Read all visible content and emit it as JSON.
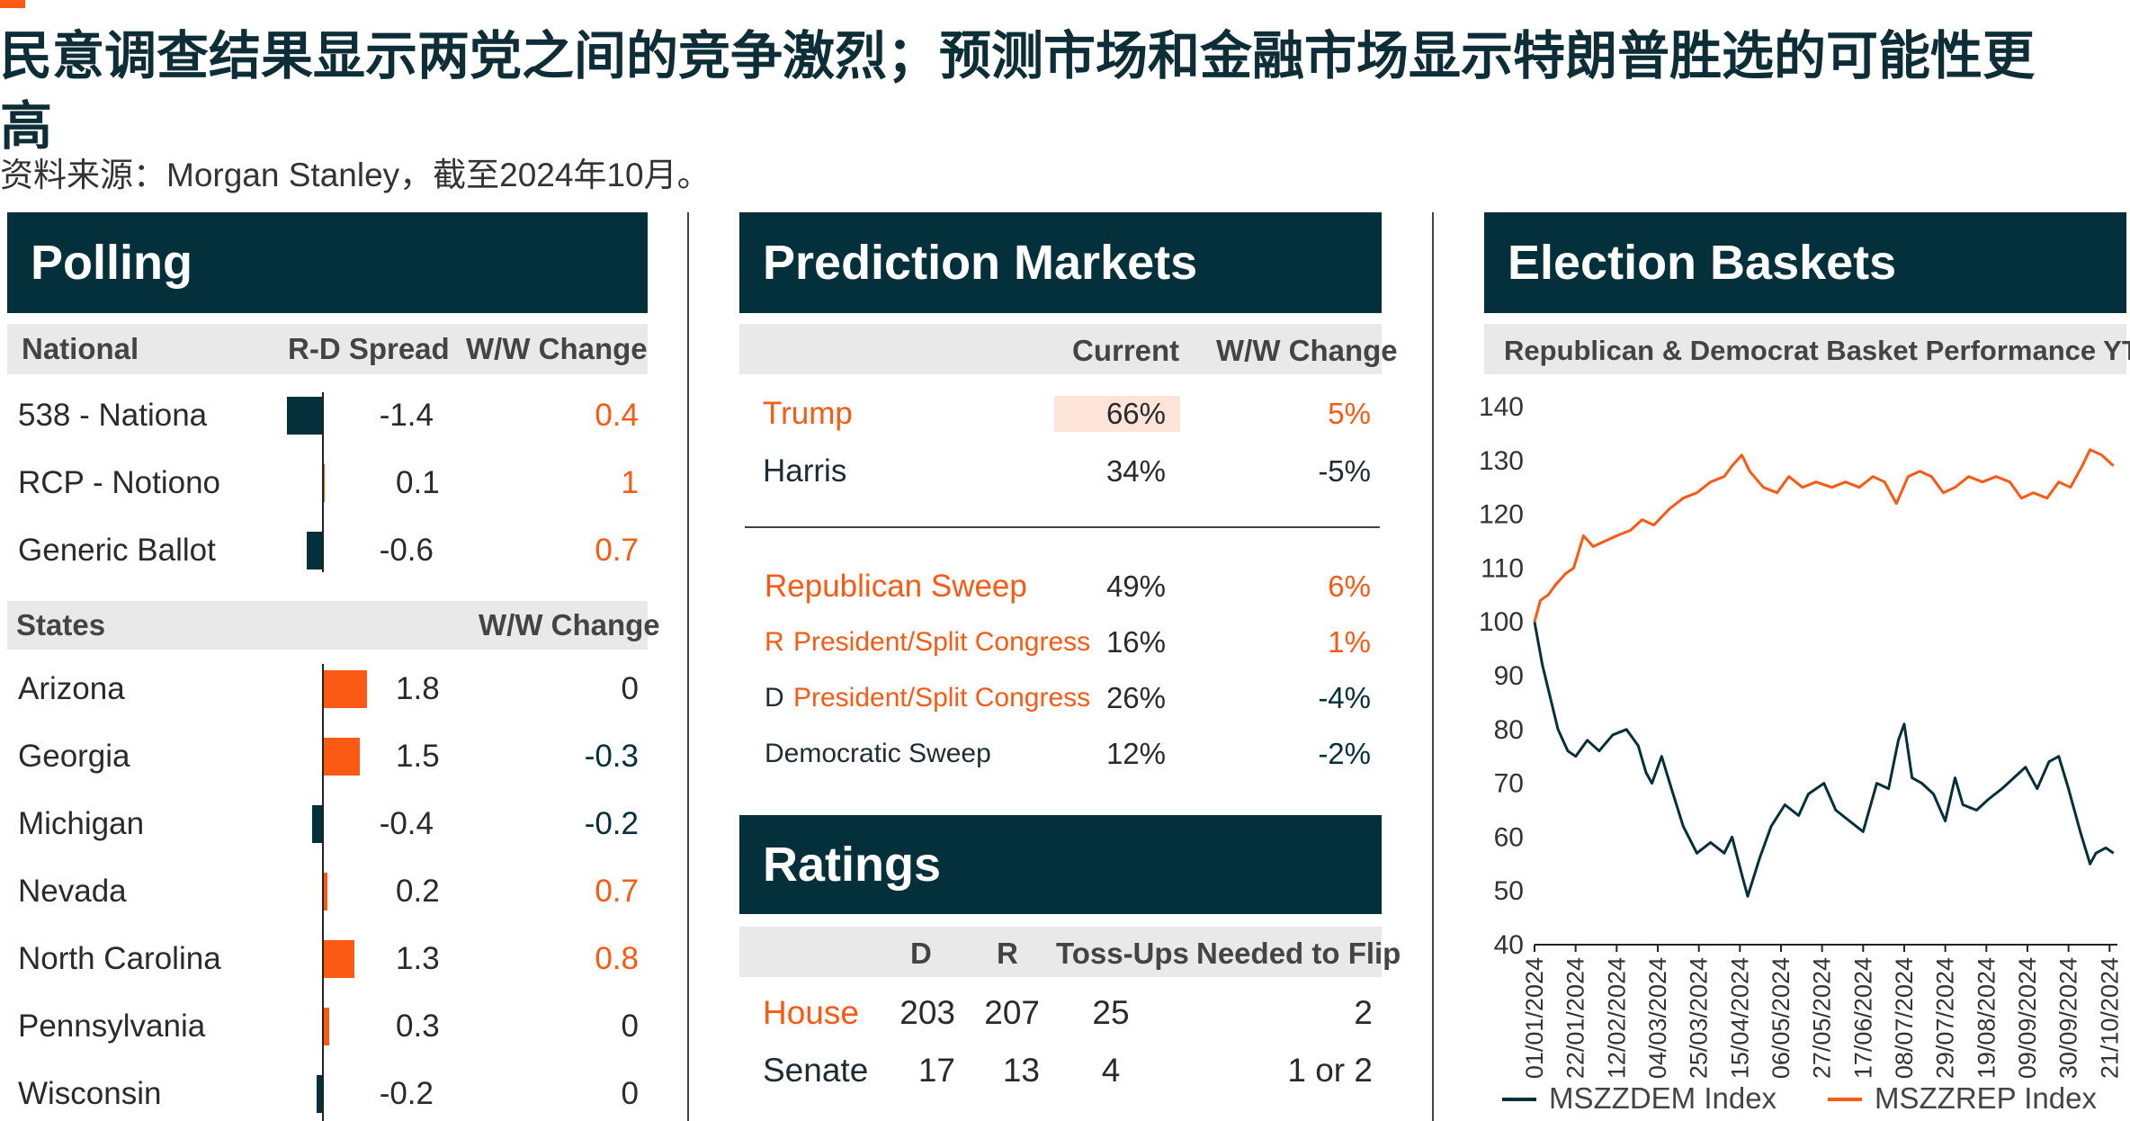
{
  "header": {
    "title": "民意调查结果显示两党之间的竞争激烈；预测市场和金融市场显示特朗普胜选的可能性更高",
    "source": "资料来源：Morgan Stanley，截至2024年10月。"
  },
  "colors": {
    "navy": "#03303a",
    "orange": "#fa5a14",
    "band": "#e9e9e9"
  },
  "polling": {
    "title": "Polling",
    "national_header": {
      "col1": "National",
      "col2": "R-D Spread",
      "col3": "W/W Change"
    },
    "national": [
      {
        "label": "538 - Nationa",
        "spread": -1.4,
        "spread_text": "-1.4",
        "change": "0.4"
      },
      {
        "label": "RCP - Notiono",
        "spread": 0.1,
        "spread_text": "0.1",
        "change": "1"
      },
      {
        "label": "Generic Ballot",
        "spread": -0.6,
        "spread_text": "-0.6",
        "change": "0.7"
      }
    ],
    "states_header": {
      "col1": "States",
      "col3": "W/W Change"
    },
    "states": [
      {
        "label": "Arizona",
        "spread": 1.8,
        "spread_text": "1.8",
        "change": "0"
      },
      {
        "label": "Georgia",
        "spread": 1.5,
        "spread_text": "1.5",
        "change": "-0.3"
      },
      {
        "label": "Michigan",
        "spread": -0.4,
        "spread_text": "-0.4",
        "change": "-0.2"
      },
      {
        "label": "Nevada",
        "spread": 0.2,
        "spread_text": "0.2",
        "change": "0.7"
      },
      {
        "label": "North Carolina",
        "spread": 1.3,
        "spread_text": "1.3",
        "change": "0.8"
      },
      {
        "label": "Pennsylvania",
        "spread": 0.3,
        "spread_text": "0.3",
        "change": "0"
      },
      {
        "label": "Wisconsin",
        "spread": -0.2,
        "spread_text": "-0.2",
        "change": "0"
      }
    ]
  },
  "prediction": {
    "title": "Prediction Markets",
    "header": {
      "current": "Current",
      "change": "W/W Change"
    },
    "candidates": [
      {
        "label": "Trump",
        "current": "66%",
        "change": "5%"
      },
      {
        "label": "Harris",
        "current": "34%",
        "change": "-5%"
      }
    ],
    "outcomes": [
      {
        "prefix": "",
        "label": "Republican Sweep",
        "current": "49%",
        "change": "6%"
      },
      {
        "prefix": "R",
        "label": "President/Split Congress",
        "current": "16%",
        "change": "1%"
      },
      {
        "prefix": "D",
        "label": "President/Split Congress",
        "current": "26%",
        "change": "-4%"
      },
      {
        "prefix": "",
        "label": "Democratic Sweep",
        "current": "12%",
        "change": "-2%"
      }
    ]
  },
  "ratings": {
    "title": "Ratings",
    "header": {
      "d": "D",
      "r": "R",
      "toss": "Toss-Ups",
      "flip": "Needed to Flip"
    },
    "rows": [
      {
        "label": "House",
        "d": "203",
        "r": "207",
        "toss": "25",
        "flip": "2"
      },
      {
        "label": "Senate",
        "d": "17",
        "r": "13",
        "toss": "4",
        "flip": "1 or 2"
      }
    ]
  },
  "baskets": {
    "title": "Election Baskets",
    "subtitle": "Republican & Democrat Basket Performance YTD"
  },
  "chart_data": [
    {
      "type": "bar",
      "title": "National",
      "categories": [
        "538 - Nationa",
        "RCP - Notiono",
        "Generic Ballot"
      ],
      "series": [
        {
          "name": "R-D Spread",
          "values": [
            -1.4,
            0.1,
            -0.6
          ]
        }
      ]
    },
    {
      "type": "bar",
      "title": "States",
      "categories": [
        "Arizona",
        "Georgia",
        "Michigan",
        "Nevada",
        "North Carolina",
        "Pennsylvania",
        "Wisconsin"
      ],
      "series": [
        {
          "values": [
            1.8,
            1.5,
            -0.4,
            0.2,
            1.3,
            0.3,
            -0.2
          ]
        }
      ]
    },
    {
      "type": "line",
      "title": "Republican & Democrat Basket Performance YTD",
      "ylim": [
        40,
        140
      ],
      "yticks": [
        40,
        50,
        60,
        70,
        80,
        90,
        100,
        110,
        120,
        130,
        140
      ],
      "xlim": [
        "2024-01-01",
        "2024-10-25"
      ],
      "xticks": [
        "01/01/2024",
        "22/01/2024",
        "12/02/2024",
        "04/03/2024",
        "25/03/2024",
        "15/04/2024",
        "06/05/2024",
        "27/05/2024",
        "17/06/2024",
        "08/07/2024",
        "29/07/2024",
        "19/08/2024",
        "09/09/2024",
        "30/09/2024",
        "21/10/2024"
      ],
      "legend_position": "bottom",
      "series": [
        {
          "name": "MSZZDEM Index",
          "color": "#03303a",
          "points": [
            [
              "2024-01-01",
              100
            ],
            [
              "2024-01-05",
              92
            ],
            [
              "2024-01-09",
              86
            ],
            [
              "2024-01-13",
              80
            ],
            [
              "2024-01-18",
              76
            ],
            [
              "2024-01-22",
              75
            ],
            [
              "2024-01-28",
              78
            ],
            [
              "2024-02-03",
              76
            ],
            [
              "2024-02-10",
              79
            ],
            [
              "2024-02-17",
              80
            ],
            [
              "2024-02-23",
              77
            ],
            [
              "2024-02-27",
              72
            ],
            [
              "2024-03-01",
              70
            ],
            [
              "2024-03-06",
              75
            ],
            [
              "2024-03-11",
              69
            ],
            [
              "2024-03-17",
              62
            ],
            [
              "2024-03-24",
              57
            ],
            [
              "2024-03-31",
              59
            ],
            [
              "2024-04-07",
              57
            ],
            [
              "2024-04-11",
              60
            ],
            [
              "2024-04-16",
              53
            ],
            [
              "2024-04-19",
              49
            ],
            [
              "2024-04-25",
              56
            ],
            [
              "2024-05-01",
              62
            ],
            [
              "2024-05-08",
              66
            ],
            [
              "2024-05-15",
              64
            ],
            [
              "2024-05-20",
              68
            ],
            [
              "2024-05-28",
              70
            ],
            [
              "2024-06-03",
              65
            ],
            [
              "2024-06-10",
              63
            ],
            [
              "2024-06-17",
              61
            ],
            [
              "2024-06-24",
              70
            ],
            [
              "2024-06-30",
              69
            ],
            [
              "2024-07-05",
              78
            ],
            [
              "2024-07-08",
              81
            ],
            [
              "2024-07-12",
              71
            ],
            [
              "2024-07-17",
              70
            ],
            [
              "2024-07-23",
              68
            ],
            [
              "2024-07-29",
              63
            ],
            [
              "2024-08-03",
              71
            ],
            [
              "2024-08-07",
              66
            ],
            [
              "2024-08-14",
              65
            ],
            [
              "2024-08-20",
              67
            ],
            [
              "2024-08-27",
              69
            ],
            [
              "2024-09-02",
              71
            ],
            [
              "2024-09-08",
              73
            ],
            [
              "2024-09-14",
              69
            ],
            [
              "2024-09-20",
              74
            ],
            [
              "2024-09-25",
              75
            ],
            [
              "2024-09-30",
              69
            ],
            [
              "2024-10-06",
              61
            ],
            [
              "2024-10-11",
              55
            ],
            [
              "2024-10-14",
              57
            ],
            [
              "2024-10-19",
              58
            ],
            [
              "2024-10-23",
              57
            ]
          ]
        },
        {
          "name": "MSZZREP Index",
          "color": "#fa5a14",
          "points": [
            [
              "2024-01-01",
              100
            ],
            [
              "2024-01-04",
              104
            ],
            [
              "2024-01-08",
              105
            ],
            [
              "2024-01-12",
              107
            ],
            [
              "2024-01-17",
              109
            ],
            [
              "2024-01-21",
              110
            ],
            [
              "2024-01-26",
              116
            ],
            [
              "2024-01-31",
              114
            ],
            [
              "2024-02-06",
              115
            ],
            [
              "2024-02-12",
              116
            ],
            [
              "2024-02-19",
              117
            ],
            [
              "2024-02-25",
              119
            ],
            [
              "2024-03-02",
              118
            ],
            [
              "2024-03-10",
              121
            ],
            [
              "2024-03-17",
              123
            ],
            [
              "2024-03-24",
              124
            ],
            [
              "2024-03-31",
              126
            ],
            [
              "2024-04-07",
              127
            ],
            [
              "2024-04-11",
              129
            ],
            [
              "2024-04-16",
              131
            ],
            [
              "2024-04-20",
              128
            ],
            [
              "2024-04-27",
              125
            ],
            [
              "2024-05-04",
              124
            ],
            [
              "2024-05-10",
              127
            ],
            [
              "2024-05-17",
              125
            ],
            [
              "2024-05-24",
              126
            ],
            [
              "2024-06-01",
              125
            ],
            [
              "2024-06-08",
              126
            ],
            [
              "2024-06-15",
              125
            ],
            [
              "2024-06-22",
              127
            ],
            [
              "2024-06-28",
              126
            ],
            [
              "2024-07-04",
              122
            ],
            [
              "2024-07-10",
              127
            ],
            [
              "2024-07-16",
              128
            ],
            [
              "2024-07-22",
              127
            ],
            [
              "2024-07-28",
              124
            ],
            [
              "2024-08-03",
              125
            ],
            [
              "2024-08-10",
              127
            ],
            [
              "2024-08-17",
              126
            ],
            [
              "2024-08-24",
              127
            ],
            [
              "2024-08-31",
              126
            ],
            [
              "2024-09-06",
              123
            ],
            [
              "2024-09-12",
              124
            ],
            [
              "2024-09-19",
              123
            ],
            [
              "2024-09-25",
              126
            ],
            [
              "2024-10-01",
              125
            ],
            [
              "2024-10-07",
              129
            ],
            [
              "2024-10-11",
              132
            ],
            [
              "2024-10-17",
              131
            ],
            [
              "2024-10-23",
              129
            ]
          ]
        }
      ]
    }
  ]
}
